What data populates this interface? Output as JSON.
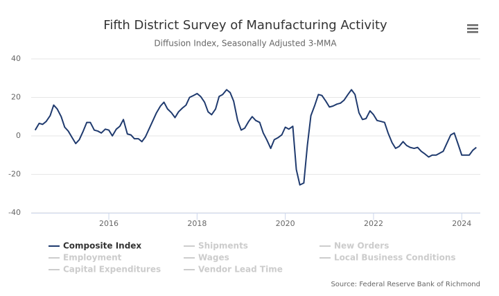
{
  "chart_data": {
    "type": "line",
    "title": "Fifth District Survey of Manufacturing Activity",
    "subtitle": "Diffusion Index, Seasonally Adjusted 3-MMA",
    "source": "Source: Federal Reserve Bank of Richmond",
    "xlim": [
      2014.24,
      2024.42
    ],
    "xticks": [
      2016,
      2018,
      2020,
      2022,
      2024
    ],
    "ylim": [
      -40,
      40
    ],
    "yticks": [
      -40,
      -20,
      0,
      20,
      40
    ],
    "grid": true,
    "x": [
      2014.33,
      2014.42,
      2014.5,
      2014.58,
      2014.67,
      2014.75,
      2014.83,
      2014.92,
      2015,
      2015.08,
      2015.17,
      2015.25,
      2015.33,
      2015.42,
      2015.5,
      2015.58,
      2015.67,
      2015.75,
      2015.83,
      2015.92,
      2016,
      2016.08,
      2016.17,
      2016.25,
      2016.33,
      2016.42,
      2016.5,
      2016.58,
      2016.67,
      2016.75,
      2016.83,
      2016.92,
      2017,
      2017.08,
      2017.17,
      2017.25,
      2017.33,
      2017.42,
      2017.5,
      2017.58,
      2017.67,
      2017.75,
      2017.83,
      2017.92,
      2018,
      2018.08,
      2018.17,
      2018.25,
      2018.33,
      2018.42,
      2018.5,
      2018.58,
      2018.67,
      2018.75,
      2018.83,
      2018.92,
      2019,
      2019.08,
      2019.17,
      2019.25,
      2019.33,
      2019.42,
      2019.5,
      2019.58,
      2019.67,
      2019.75,
      2019.83,
      2019.92,
      2020,
      2020.08,
      2020.17,
      2020.25,
      2020.33,
      2020.42,
      2020.5,
      2020.58,
      2020.67,
      2020.75,
      2020.83,
      2020.92,
      2021,
      2021.08,
      2021.17,
      2021.25,
      2021.33,
      2021.42,
      2021.5,
      2021.58,
      2021.67,
      2021.75,
      2021.83,
      2021.92,
      2022,
      2022.08,
      2022.17,
      2022.25,
      2022.33,
      2022.42,
      2022.5,
      2022.58,
      2022.67,
      2022.75,
      2022.83,
      2022.92,
      2023,
      2023.08,
      2023.17,
      2023.25,
      2023.33,
      2023.42,
      2023.5,
      2023.58,
      2023.67,
      2023.75,
      2023.83,
      2023.92,
      2024,
      2024.08,
      2024.17,
      2024.25,
      2024.33
    ],
    "series": [
      {
        "name": "Composite Index",
        "color": "#1f3a6e",
        "visible": true,
        "values": [
          3,
          6.5,
          6,
          7.5,
          10.5,
          16,
          14,
          10,
          4.5,
          2.5,
          -1,
          -4,
          -2,
          2.5,
          7,
          7,
          3,
          2.5,
          1.5,
          3.5,
          3,
          0,
          3.5,
          5,
          8.5,
          1,
          0.5,
          -1.5,
          -1.5,
          -3,
          -0.5,
          4,
          8,
          12,
          15.5,
          17.5,
          14,
          12,
          9.5,
          12.5,
          14.5,
          16,
          20,
          21,
          22,
          20.5,
          17.5,
          12.5,
          11,
          14,
          20.5,
          21.5,
          24,
          22.5,
          18,
          8,
          3,
          4,
          7.5,
          10,
          8,
          7,
          1.5,
          -2,
          -6.5,
          -2,
          -1,
          0.5,
          4.5,
          3.5,
          5,
          -17.5,
          -25.5,
          -24.5,
          -5,
          10.5,
          16,
          21.5,
          21,
          18,
          15,
          15.5,
          16.5,
          17,
          18.5,
          21.5,
          24,
          21.5,
          12,
          8.5,
          9,
          13,
          11,
          8,
          7.5,
          7,
          1.5,
          -3.5,
          -6.5,
          -5.5,
          -3,
          -5,
          -6,
          -6.5,
          -6,
          -8,
          -9.5,
          -11,
          -10,
          -10,
          -9,
          -8,
          -3.5,
          0.5,
          1.5,
          -4.5,
          -10,
          -10,
          -10,
          -7.5,
          -6
        ]
      },
      {
        "name": "Shipments",
        "color": "#cccccc",
        "visible": false
      },
      {
        "name": "New Orders",
        "color": "#cccccc",
        "visible": false
      },
      {
        "name": "Employment",
        "color": "#cccccc",
        "visible": false
      },
      {
        "name": "Wages",
        "color": "#cccccc",
        "visible": false
      },
      {
        "name": "Local Business Conditions",
        "color": "#cccccc",
        "visible": false
      },
      {
        "name": "Capital Expenditures",
        "color": "#cccccc",
        "visible": false
      },
      {
        "name": "Vendor Lead Time",
        "color": "#cccccc",
        "visible": false
      }
    ]
  }
}
